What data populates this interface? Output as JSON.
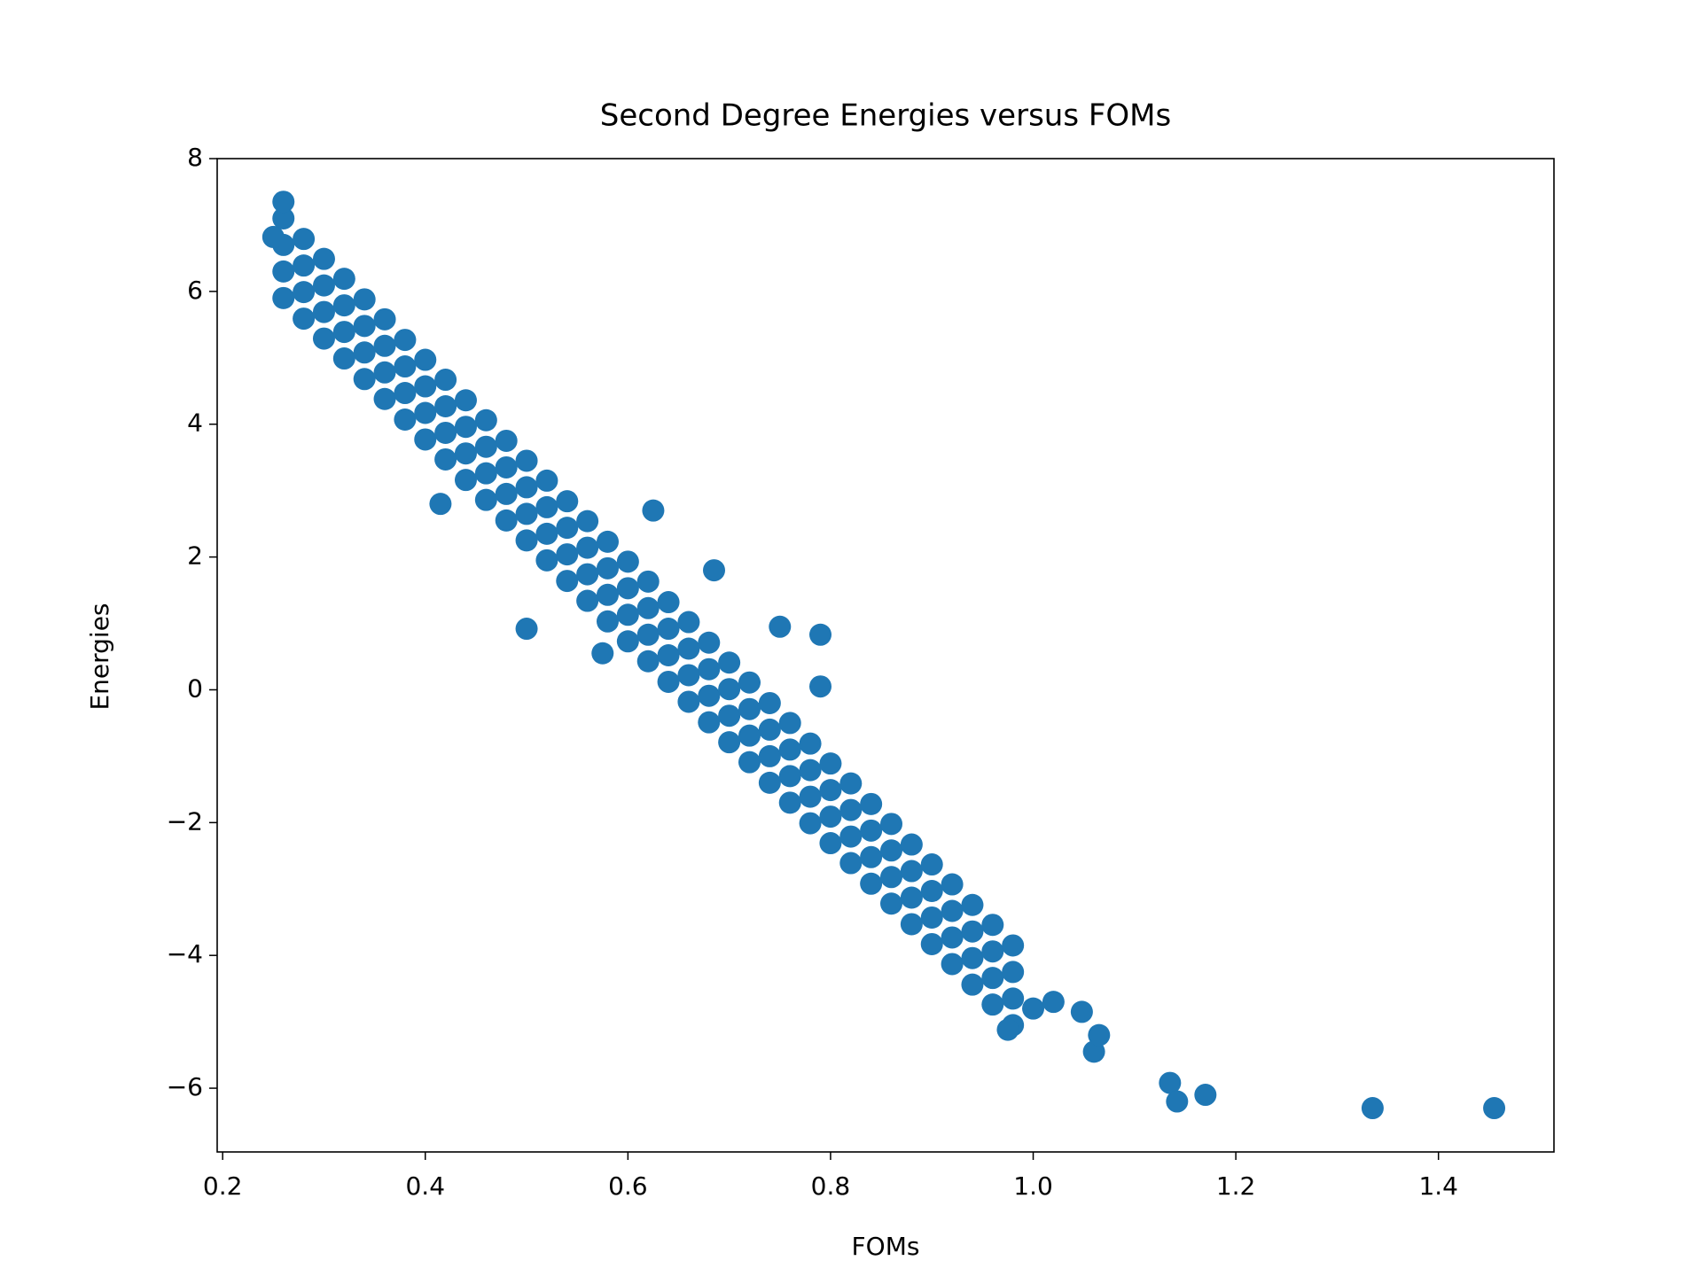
{
  "chart_data": {
    "type": "scatter",
    "title": "Second Degree Energies versus FOMs",
    "x_label": "FOMs",
    "y_label": "Energies",
    "color": "#1f77b4",
    "xlim": [
      0.1946,
      1.514
    ],
    "ylim": [
      -6.96,
      8
    ],
    "xticks": [
      0.2,
      0.4,
      0.6,
      0.8,
      {
        "value": 1,
        "label": "1.0"
      },
      1.2,
      1.4
    ],
    "yticks": [
      {
        "value": -6,
        "label": "−6"
      },
      {
        "value": -4,
        "label": "−4"
      },
      {
        "value": -2,
        "label": "−2"
      },
      0,
      2,
      4,
      6,
      8
    ],
    "x": [
      0.26,
      0.26,
      0.26,
      0.26,
      0.28,
      0.28,
      0.28,
      0.28,
      0.3,
      0.3,
      0.3,
      0.3,
      0.32,
      0.32,
      0.32,
      0.32,
      0.34,
      0.34,
      0.34,
      0.34,
      0.36,
      0.36,
      0.36,
      0.36,
      0.38,
      0.38,
      0.38,
      0.38,
      0.4,
      0.4,
      0.4,
      0.4,
      0.42,
      0.42,
      0.42,
      0.42,
      0.44,
      0.44,
      0.44,
      0.44,
      0.46,
      0.46,
      0.46,
      0.46,
      0.48,
      0.48,
      0.48,
      0.48,
      0.5,
      0.5,
      0.5,
      0.5,
      0.52,
      0.52,
      0.52,
      0.52,
      0.54,
      0.54,
      0.54,
      0.54,
      0.56,
      0.56,
      0.56,
      0.56,
      0.58,
      0.58,
      0.58,
      0.58,
      0.6,
      0.6,
      0.6,
      0.6,
      0.62,
      0.62,
      0.62,
      0.62,
      0.64,
      0.64,
      0.64,
      0.64,
      0.66,
      0.66,
      0.66,
      0.66,
      0.68,
      0.68,
      0.68,
      0.68,
      0.7,
      0.7,
      0.7,
      0.7,
      0.72,
      0.72,
      0.72,
      0.72,
      0.74,
      0.74,
      0.74,
      0.74,
      0.76,
      0.76,
      0.76,
      0.76,
      0.78,
      0.78,
      0.78,
      0.78,
      0.8,
      0.8,
      0.8,
      0.8,
      0.82,
      0.82,
      0.82,
      0.82,
      0.84,
      0.84,
      0.84,
      0.84,
      0.86,
      0.86,
      0.86,
      0.86,
      0.88,
      0.88,
      0.88,
      0.88,
      0.9,
      0.9,
      0.9,
      0.9,
      0.92,
      0.92,
      0.92,
      0.92,
      0.94,
      0.94,
      0.94,
      0.94,
      0.96,
      0.96,
      0.96,
      0.96,
      0.98,
      0.98,
      0.98,
      0.98,
      0.26,
      0.25,
      0.5,
      0.575,
      0.415,
      0.79,
      0.79,
      0.975,
      1.0,
      1.02,
      1.048,
      1.06,
      1.065,
      1.135,
      1.142,
      1.17,
      1.335,
      1.455,
      0.75,
      0.685,
      0.625
    ],
    "y": [
      7.1,
      6.7,
      6.3,
      5.9,
      6.79,
      6.39,
      5.99,
      5.59,
      6.49,
      6.09,
      5.69,
      5.29,
      6.19,
      5.79,
      5.39,
      4.99,
      5.88,
      5.48,
      5.08,
      4.68,
      5.58,
      5.18,
      4.78,
      4.38,
      5.27,
      4.87,
      4.47,
      4.07,
      4.97,
      4.57,
      4.17,
      3.77,
      4.67,
      4.27,
      3.87,
      3.47,
      4.36,
      3.96,
      3.56,
      3.16,
      4.06,
      3.66,
      3.26,
      2.86,
      3.75,
      3.35,
      2.95,
      2.55,
      3.45,
      3.05,
      2.65,
      2.25,
      3.15,
      2.75,
      2.35,
      1.95,
      2.84,
      2.44,
      2.04,
      1.64,
      2.54,
      2.14,
      1.74,
      1.34,
      2.23,
      1.83,
      1.43,
      1.03,
      1.93,
      1.53,
      1.13,
      0.73,
      1.63,
      1.23,
      0.83,
      0.43,
      1.32,
      0.92,
      0.52,
      0.12,
      1.02,
      0.62,
      0.22,
      -0.18,
      0.71,
      0.31,
      -0.09,
      -0.49,
      0.41,
      0.01,
      -0.39,
      -0.79,
      0.11,
      -0.29,
      -0.69,
      -1.09,
      -0.2,
      -0.6,
      -1.0,
      -1.4,
      -0.5,
      -0.9,
      -1.3,
      -1.7,
      -0.81,
      -1.21,
      -1.61,
      -2.01,
      -1.11,
      -1.51,
      -1.91,
      -2.31,
      -1.41,
      -1.81,
      -2.21,
      -2.61,
      -1.72,
      -2.12,
      -2.52,
      -2.92,
      -2.02,
      -2.42,
      -2.82,
      -3.22,
      -2.33,
      -2.73,
      -3.13,
      -3.53,
      -2.63,
      -3.03,
      -3.43,
      -3.83,
      -2.93,
      -3.33,
      -3.73,
      -4.13,
      -3.24,
      -3.64,
      -4.04,
      -4.44,
      -3.54,
      -3.94,
      -4.34,
      -4.74,
      -3.85,
      -4.25,
      -4.65,
      -5.05,
      7.35,
      6.82,
      0.92,
      0.55,
      2.8,
      0.83,
      0.05,
      -5.12,
      -4.8,
      -4.7,
      -4.85,
      -5.45,
      -5.2,
      -5.92,
      -6.2,
      -6.1,
      -6.3,
      -6.3,
      0.95,
      1.8,
      2.7
    ]
  }
}
